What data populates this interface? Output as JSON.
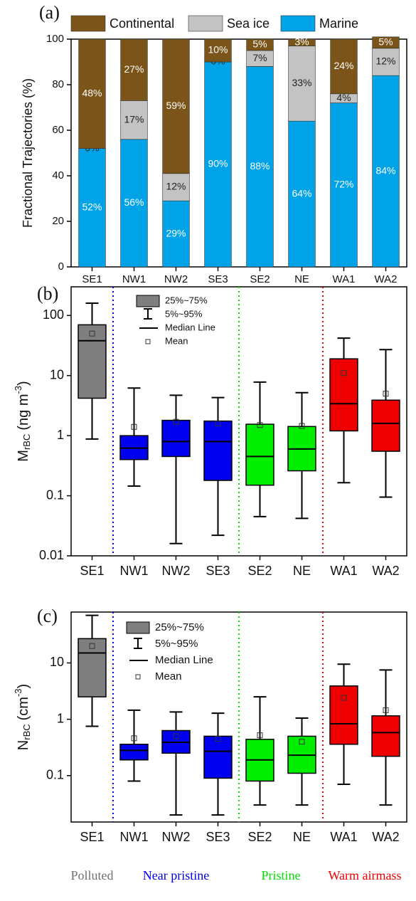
{
  "chart_data": [
    {
      "type": "stacked_bar",
      "panel_label": "(a)",
      "y_label": "Fractional Trajectories (%)",
      "categories": [
        "SE1",
        "NW1",
        "NW2",
        "SE3",
        "SE2",
        "NE",
        "WA1",
        "WA2"
      ],
      "series": [
        {
          "name": "Marine",
          "color": "#00a2e8",
          "label_color": "#ffffff",
          "values": [
            52,
            56,
            29,
            90,
            88,
            64,
            72,
            84
          ],
          "value_labels": [
            "52%",
            "56%",
            "29%",
            "90%",
            "88%",
            "64%",
            "72%",
            "84%"
          ]
        },
        {
          "name": "Sea ice",
          "color": "#c3c3c3",
          "label_color": "#222222",
          "values": [
            0,
            17,
            12,
            0,
            7,
            33,
            4,
            12
          ],
          "value_labels": [
            "0%",
            "17%",
            "12%",
            "0%",
            "7%",
            "33%",
            "4%",
            "12%"
          ]
        },
        {
          "name": "Continental",
          "color": "#7a5418",
          "label_color": "#ffffff",
          "values": [
            48,
            27,
            59,
            10,
            5,
            3,
            24,
            5
          ],
          "value_labels": [
            "48%",
            "27%",
            "59%",
            "10%",
            "5%",
            "3%",
            "24%",
            "5%"
          ]
        }
      ],
      "ylim": [
        0,
        100
      ],
      "yticks": [
        0,
        20,
        40,
        60,
        80,
        100
      ]
    },
    {
      "type": "box",
      "panel_label": "(b)",
      "log_scale": true,
      "y_label": {
        "base": "M",
        "subscript": "rBC",
        "unit": "(ng m",
        "superscript": "-3",
        "close": ")"
      },
      "categories": [
        "SE1",
        "NW1",
        "NW2",
        "SE3",
        "SE2",
        "NE",
        "WA1",
        "WA2"
      ],
      "box_colors": [
        "#7f7f7f",
        "#0000ee",
        "#0000ee",
        "#0000ee",
        "#00ee00",
        "#00ee00",
        "#ee0000",
        "#ee0000"
      ],
      "whisker_low": [
        0.88,
        0.145,
        0.016,
        0.022,
        0.045,
        0.042,
        0.165,
        0.095
      ],
      "q1": [
        4.2,
        0.4,
        0.45,
        0.18,
        0.15,
        0.26,
        1.2,
        0.55
      ],
      "median": [
        38,
        0.62,
        0.8,
        0.8,
        0.45,
        0.6,
        3.4,
        1.6
      ],
      "q3": [
        70,
        1.0,
        1.8,
        1.75,
        1.55,
        1.42,
        19,
        3.9
      ],
      "whisker_high": [
        160,
        6.2,
        4.7,
        4.3,
        7.8,
        5.2,
        42,
        27
      ],
      "mean": [
        50,
        1.4,
        1.7,
        1.6,
        1.5,
        1.45,
        11,
        5
      ],
      "legend": [
        "25%~75%",
        "5%~95%",
        "Median Line",
        "Mean"
      ],
      "ylim": [
        0.01,
        300
      ],
      "yticks": [
        0.01,
        0.1,
        1,
        10,
        100
      ]
    },
    {
      "type": "box",
      "panel_label": "(c)",
      "log_scale": true,
      "y_label": {
        "base": "N",
        "subscript": "rBC",
        "unit": "(cm",
        "superscript": "-3",
        "close": ")"
      },
      "categories": [
        "SE1",
        "NW1",
        "NW2",
        "SE3",
        "SE2",
        "NE",
        "WA1",
        "WA2"
      ],
      "box_colors": [
        "#7f7f7f",
        "#0000ee",
        "#0000ee",
        "#0000ee",
        "#00ee00",
        "#00ee00",
        "#ee0000",
        "#ee0000"
      ],
      "whisker_low": [
        0.75,
        0.08,
        0.02,
        0.02,
        0.03,
        0.03,
        0.07,
        0.03
      ],
      "q1": [
        2.5,
        0.19,
        0.25,
        0.09,
        0.08,
        0.11,
        0.36,
        0.22
      ],
      "median": [
        15,
        0.28,
        0.39,
        0.27,
        0.19,
        0.23,
        0.83,
        0.58
      ],
      "q3": [
        27,
        0.36,
        0.63,
        0.5,
        0.44,
        0.5,
        3.9,
        1.15
      ],
      "whisker_high": [
        70,
        1.45,
        1.35,
        1.28,
        2.5,
        1.05,
        9.5,
        7.5
      ],
      "mean": [
        20,
        0.46,
        0.5,
        0.45,
        0.52,
        0.4,
        2.4,
        1.45
      ],
      "legend": [
        "25%~75%",
        "5%~95%",
        "Median Line",
        "Mean"
      ],
      "ylim": [
        0.015,
        80
      ],
      "yticks": [
        0.1,
        1,
        10
      ]
    }
  ],
  "group_labels": [
    {
      "text": "Polluted",
      "color": "#707070"
    },
    {
      "text": "Near pristine",
      "color": "#0000ee"
    },
    {
      "text": "Pristine",
      "color": "#00dd00"
    },
    {
      "text": "Warm airmass",
      "color": "#ee0000"
    }
  ]
}
